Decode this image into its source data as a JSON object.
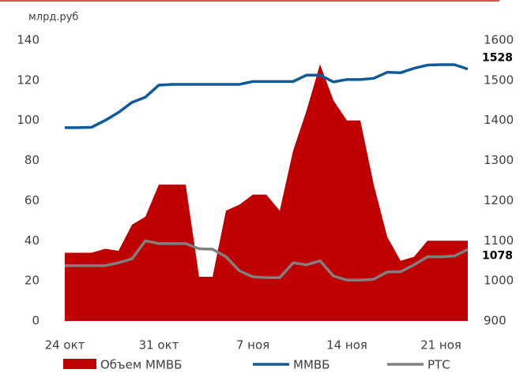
{
  "chart_data": {
    "type": "area_lines",
    "axis_label": "млрд.руб",
    "categories": [
      "24 окт",
      null,
      null,
      null,
      null,
      null,
      null,
      "31 окт",
      null,
      null,
      null,
      null,
      null,
      null,
      "7 ноя",
      null,
      null,
      null,
      null,
      null,
      null,
      "14 ноя",
      null,
      null,
      null,
      null,
      null,
      null,
      "21 ноя",
      null,
      null
    ],
    "series": [
      {
        "name": "Объем ММВБ",
        "color": "#c00000",
        "kind": "area",
        "values": [
          34,
          34,
          34,
          36,
          35,
          48,
          52,
          68,
          68,
          68,
          22,
          22,
          55,
          58,
          63,
          63,
          55,
          85,
          105,
          128,
          110,
          100,
          100,
          68,
          42,
          30,
          32,
          40,
          40,
          40,
          40
        ]
      },
      {
        "name": "ММВБ",
        "color": "#0f5a9c",
        "kind": "line",
        "axis": "y2",
        "label_last": true,
        "values": [
          1382,
          1382,
          1383,
          1400,
          1420,
          1445,
          1458,
          1488,
          1490,
          1490,
          1490,
          1490,
          1490,
          1490,
          1497,
          1497,
          1497,
          1497,
          1513,
          1513,
          1496,
          1502,
          1502,
          1505,
          1520,
          1519,
          1530,
          1538,
          1539,
          1539,
          1528
        ]
      },
      {
        "name": "РТС",
        "color": "#808080",
        "kind": "line",
        "axis": "y2",
        "label_last": true,
        "values": [
          1038,
          1038,
          1038,
          1038,
          1045,
          1055,
          1100,
          1093,
          1093,
          1093,
          1080,
          1079,
          1060,
          1025,
          1010,
          1008,
          1008,
          1045,
          1040,
          1050,
          1012,
          1002,
          1002,
          1004,
          1022,
          1023,
          1040,
          1060,
          1060,
          1062,
          1078
        ]
      }
    ],
    "ylim": [
      0,
      140
    ],
    "yticks": [
      0,
      20,
      40,
      60,
      80,
      100,
      120,
      140
    ],
    "y2lim": [
      900,
      1600
    ],
    "y2ticks": [
      900,
      1000,
      1100,
      1200,
      1300,
      1400,
      1500,
      1600
    ],
    "grid": false
  }
}
